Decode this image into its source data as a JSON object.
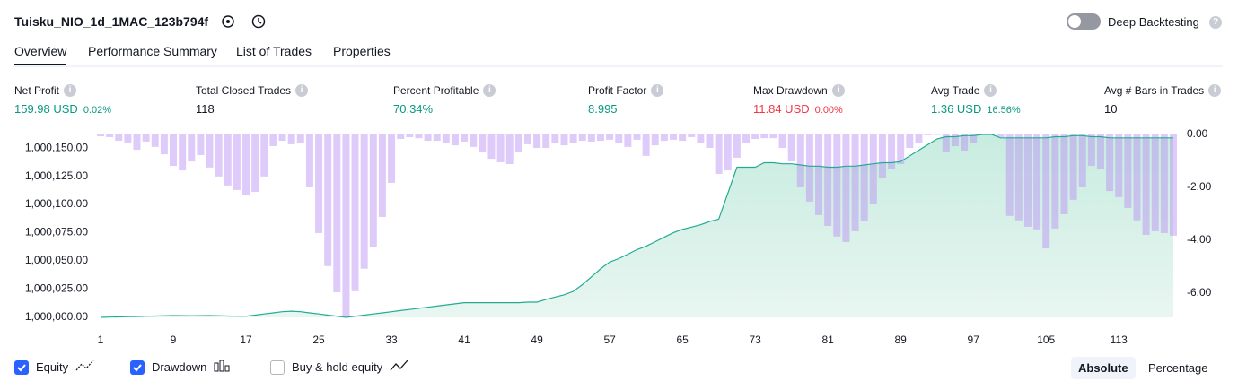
{
  "header": {
    "title": "Tuisku_NIO_1d_1MAC_123b794f",
    "toggle": "Deep Backtesting"
  },
  "tabs": [
    "Overview",
    "Performance Summary",
    "List of Trades",
    "Properties"
  ],
  "stats": [
    {
      "label": "Net Profit",
      "value": "159.98 USD",
      "change": "0.02%"
    },
    {
      "label": "Total Closed Trades",
      "value": "118"
    },
    {
      "label": "Percent Profitable",
      "value": "70.34%"
    },
    {
      "label": "Profit Factor",
      "value": "8.995"
    },
    {
      "label": "Max Drawdown",
      "value": "11.84 USD",
      "change": "0.00%"
    },
    {
      "label": "Avg Trade",
      "value": "1.36 USD",
      "change": "16.56%"
    },
    {
      "label": "Avg # Bars in Trades",
      "value": "10"
    }
  ],
  "chart_data": {
    "type": "line",
    "x": [
      1,
      2,
      3,
      4,
      5,
      6,
      7,
      8,
      9,
      10,
      11,
      12,
      13,
      14,
      15,
      16,
      17,
      18,
      19,
      20,
      21,
      22,
      23,
      24,
      25,
      26,
      27,
      28,
      29,
      30,
      31,
      32,
      33,
      34,
      35,
      36,
      37,
      38,
      39,
      40,
      41,
      42,
      43,
      44,
      45,
      46,
      47,
      48,
      49,
      50,
      51,
      52,
      53,
      54,
      55,
      56,
      57,
      58,
      59,
      60,
      61,
      62,
      63,
      64,
      65,
      66,
      67,
      68,
      69,
      70,
      71,
      72,
      73,
      74,
      75,
      76,
      77,
      78,
      79,
      80,
      81,
      82,
      83,
      84,
      85,
      86,
      87,
      88,
      89,
      90,
      91,
      92,
      93,
      94,
      95,
      96,
      97,
      98,
      99,
      100,
      101,
      102,
      103,
      104,
      105,
      106,
      107,
      108,
      109,
      110,
      111,
      112,
      113,
      114,
      115,
      116,
      117,
      118,
      119
    ],
    "xlim": [
      1,
      119
    ],
    "xticks": [
      1,
      9,
      17,
      25,
      33,
      41,
      49,
      57,
      65,
      73,
      81,
      89,
      97,
      105,
      113
    ],
    "ylim": [
      1000000,
      1000162
    ],
    "yticks": [
      {
        "value": 1000000,
        "label": "1,000,000.00"
      },
      {
        "value": 1000025,
        "label": "1,000,025.00"
      },
      {
        "value": 1000050,
        "label": "1,000,050.00"
      },
      {
        "value": 1000075,
        "label": "1,000,075.00"
      },
      {
        "value": 1000100,
        "label": "1,000,100.00"
      },
      {
        "value": 1000125,
        "label": "1,000,125.00"
      },
      {
        "value": 1000150,
        "label": "1,000,150.00"
      }
    ],
    "y2lim": [
      -6.92,
      0
    ],
    "y2ticks": [
      {
        "value": 0,
        "label": "0.00"
      },
      {
        "value": -2,
        "label": "-2.00"
      },
      {
        "value": -4,
        "label": "-4.00"
      },
      {
        "value": -6,
        "label": "-6.00"
      }
    ],
    "series": [
      {
        "name": "Equity",
        "color": "#22ab94",
        "fill": "#c8ece0",
        "values": [
          1000000,
          1000000.2,
          1000000.4,
          1000000.6,
          1000000.8,
          1000001,
          1000001.2,
          1000001.4,
          1000001.6,
          1000001.5,
          1000001.4,
          1000001.5,
          1000001.6,
          1000001.4,
          1000001.2,
          1000001,
          1000001,
          1000002,
          1000003,
          1000004,
          1000005,
          1000005.5,
          1000005,
          1000004,
          1000003,
          1000002,
          1000001,
          1000000,
          1000001,
          1000002,
          1000003,
          1000004,
          1000005,
          1000006,
          1000007,
          1000008,
          1000009,
          1000010,
          1000011,
          1000012,
          1000013,
          1000013,
          1000013,
          1000013,
          1000013,
          1000013,
          1000013,
          1000013.5,
          1000013.5,
          1000016,
          1000018,
          1000020,
          1000023,
          1000029,
          1000036,
          1000043,
          1000049,
          1000052,
          1000056,
          1000060,
          1000063,
          1000067,
          1000071,
          1000075,
          1000078,
          1000080,
          1000082,
          1000085,
          1000087,
          1000110,
          1000133,
          1000133,
          1000133,
          1000137,
          1000137,
          1000136,
          1000136,
          1000135,
          1000134,
          1000134,
          1000133,
          1000133,
          1000134,
          1000134,
          1000135,
          1000136,
          1000137,
          1000137,
          1000138,
          1000143,
          1000148,
          1000153,
          1000158,
          1000160,
          1000160,
          1000161,
          1000161,
          1000162,
          1000162,
          1000159,
          1000159,
          1000159,
          1000159,
          1000159,
          1000159,
          1000160,
          1000160,
          1000161,
          1000161,
          1000160,
          1000160,
          1000159,
          1000159,
          1000159,
          1000159,
          1000159,
          1000159,
          1000159,
          1000159
        ]
      },
      {
        "name": "Drawdown",
        "color": "#b98cf5",
        "axis": "y2",
        "values": [
          -0.07,
          -0.1,
          -0.24,
          -0.34,
          -0.58,
          -0.27,
          -0.47,
          -0.75,
          -1.19,
          -1.36,
          -1.02,
          -0.78,
          -1.25,
          -1.59,
          -1.93,
          -2.1,
          -2.31,
          -2.17,
          -1.59,
          -0.44,
          -0.24,
          -0.37,
          -0.34,
          -2,
          -3.73,
          -4.98,
          -5.97,
          -6.92,
          -5.93,
          -5.08,
          -4.27,
          -3.12,
          -1.83,
          -0.17,
          -0.1,
          -0.14,
          -0.24,
          -0.24,
          -0.34,
          -0.41,
          -0.27,
          -0.47,
          -0.68,
          -0.92,
          -1.05,
          -1.12,
          -0.68,
          -0.37,
          -0.51,
          -0.51,
          -0.34,
          -0.41,
          -0.31,
          -0.24,
          -0.27,
          -0.24,
          -0.2,
          -0.31,
          -0.47,
          -0.2,
          -0.81,
          -0.41,
          -0.24,
          -0.2,
          -0.24,
          -0.1,
          -0.31,
          -0.51,
          -1.49,
          -1.36,
          -0.88,
          -0.34,
          -0.17,
          -0.14,
          -0.14,
          -0.51,
          -1.02,
          -2,
          -2.54,
          -3.05,
          -3.46,
          -3.86,
          -4.07,
          -3.66,
          -3.29,
          -2.64,
          -1.66,
          -1.29,
          -1.12,
          -0.51,
          -0.31,
          -0.03,
          0,
          -0.68,
          -0.44,
          -0.61,
          -0.34,
          0,
          0,
          -0.1,
          -3.08,
          -3.25,
          -3.49,
          -3.59,
          -4.31,
          -3.56,
          -3.02,
          -2.47,
          -2,
          -1.19,
          -1.29,
          -2.14,
          -2.37,
          -2.78,
          -3.25,
          -3.8,
          -3.66,
          -3.73,
          -3.83
        ]
      }
    ]
  },
  "legend": [
    {
      "label": "Equity",
      "checked": true
    },
    {
      "label": "Drawdown",
      "checked": true
    },
    {
      "label": "Buy & hold equity",
      "checked": false
    }
  ],
  "modes": [
    "Absolute",
    "Percentage"
  ]
}
